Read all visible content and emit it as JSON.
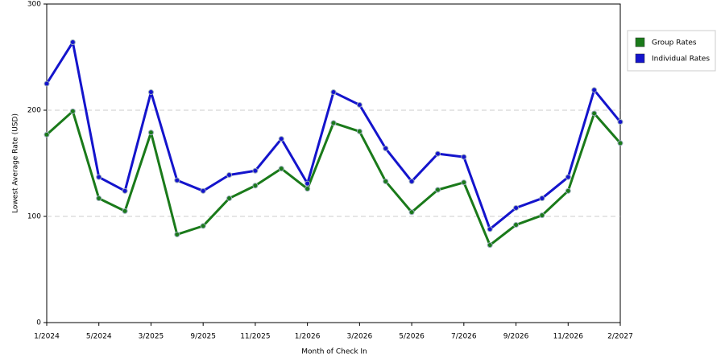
{
  "chart_data": {
    "type": "line",
    "x_label": "Month of Check In",
    "y_label": "Lowest Average Rate (USD)",
    "categories": [
      "1/2024",
      null,
      "5/2024",
      null,
      "3/2025",
      null,
      "9/2025",
      null,
      "11/2025",
      null,
      "1/2026",
      null,
      "3/2026",
      null,
      "5/2026",
      null,
      "7/2026",
      null,
      "9/2026",
      null,
      "11/2026",
      null,
      "2/2027"
    ],
    "series": [
      {
        "name": "Group Rates",
        "color": "#1a7a1a",
        "values": [
          177,
          199,
          117,
          105,
          179,
          83,
          91,
          117,
          129,
          145,
          126,
          188,
          180,
          133,
          104,
          125,
          132,
          73,
          92,
          101,
          124,
          197,
          169
        ]
      },
      {
        "name": "Individual Rates",
        "color": "#1414cc",
        "values": [
          225,
          264,
          137,
          124,
          217,
          134,
          124,
          139,
          143,
          173,
          131,
          217,
          205,
          164,
          133,
          159,
          156,
          88,
          108,
          117,
          137,
          219,
          189
        ]
      }
    ],
    "ylim": [
      0,
      300
    ],
    "yticks": [
      0,
      100,
      200,
      300
    ],
    "grid": true,
    "legend": "right"
  }
}
